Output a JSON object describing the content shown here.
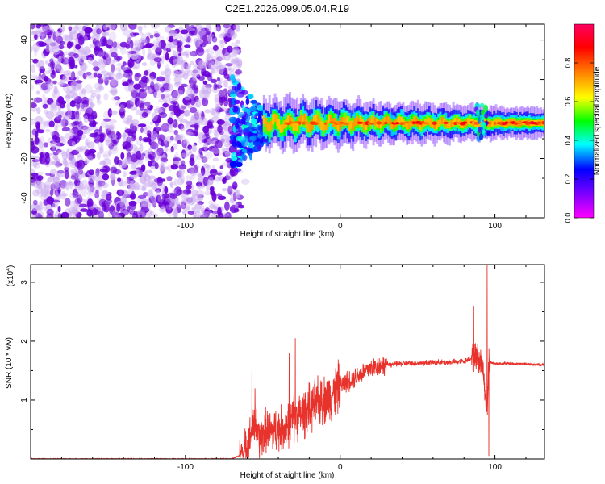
{
  "title": "C2E1.2026.099.05.04.R19",
  "colors": {
    "snr_line": "#e8322c",
    "noise_dark": "#6a00d8",
    "noise_light": "#c9a8f0",
    "axis": "#000000"
  },
  "chart_data": [
    {
      "type": "heatmap",
      "title": "C2E1.2026.099.05.04.R19",
      "xlabel": "Height of straight line (km)",
      "ylabel": "Frequency (Hz)",
      "xlim": [
        -200,
        132
      ],
      "ylim": [
        -50,
        48
      ],
      "xticks": [
        -100,
        0,
        100
      ],
      "xtick_labels": [
        "-100",
        "0",
        "100"
      ],
      "yticks": [
        -40,
        -20,
        0,
        20,
        40
      ],
      "ytick_labels": [
        "-40",
        "-20",
        "0",
        "20",
        "40"
      ],
      "colorbar": {
        "label": "Normalized spectral amplitude",
        "range": [
          0,
          1
        ],
        "ticks": [
          0,
          0.2,
          0.4,
          0.6,
          0.8
        ],
        "tick_labels": [
          "0.0",
          "0.2",
          "0.4",
          "0.6",
          "0.8"
        ],
        "colormap": [
          "#ff00ff",
          "#8000ff",
          "#0000ff",
          "#00ffff",
          "#00ff00",
          "#ffff00",
          "#ff8000",
          "#ff0000",
          "#ff0060"
        ]
      },
      "regions": [
        {
          "name": "noise",
          "x_range": [
            -200,
            -65
          ],
          "freq_range": [
            -50,
            48
          ],
          "amplitude": 0.1
        },
        {
          "name": "transition",
          "x_range": [
            -70,
            -45
          ],
          "freq_range": [
            -20,
            10
          ],
          "amplitude": 0.25
        },
        {
          "name": "signal-band",
          "x_range": [
            -50,
            132
          ],
          "center_freq": -2,
          "half_width": 3,
          "amplitude_peak": 0.95
        },
        {
          "name": "disturbance",
          "x_range": [
            88,
            96
          ],
          "freq_range": [
            -10,
            8
          ],
          "amplitude": 0.5
        }
      ]
    },
    {
      "type": "line",
      "xlabel": "Height of straight line (km)",
      "ylabel": "SNR (10 * v/v)",
      "y_scale_label": "(x10",
      "y_scale_exp": "4",
      "y_scale_close": ")",
      "xlim": [
        -200,
        132
      ],
      "ylim": [
        0,
        3.3
      ],
      "xticks": [
        -100,
        0,
        100
      ],
      "xtick_labels": [
        "-100",
        "0",
        "100"
      ],
      "yticks": [
        1,
        2,
        3
      ],
      "ytick_labels": [
        "1",
        "2",
        "3"
      ],
      "series": [
        {
          "name": "SNR",
          "x": [
            -200,
            -70,
            -62,
            -58,
            -55,
            -52,
            -48,
            -45,
            -40,
            -35,
            -30,
            -25,
            -20,
            -15,
            -10,
            -5,
            0,
            10,
            20,
            30,
            40,
            50,
            60,
            70,
            80,
            88,
            92,
            95,
            96,
            100,
            110,
            120,
            132
          ],
          "y": [
            0.0,
            0.0,
            0.1,
            0.4,
            0.6,
            0.3,
            0.5,
            0.45,
            0.5,
            0.55,
            0.7,
            0.75,
            0.85,
            0.95,
            1.0,
            1.1,
            1.25,
            1.4,
            1.55,
            1.6,
            1.62,
            1.63,
            1.64,
            1.64,
            1.66,
            1.75,
            1.6,
            0.8,
            1.65,
            1.62,
            1.62,
            1.61,
            1.6
          ]
        }
      ],
      "spikes": [
        {
          "x": -57,
          "y": 1.5
        },
        {
          "x": -55,
          "y": 1.2
        },
        {
          "x": -33,
          "y": 1.8
        },
        {
          "x": -29,
          "y": 2.05
        },
        {
          "x": -12,
          "y": 1.3
        },
        {
          "x": 86,
          "y": 2.6
        },
        {
          "x": 95,
          "y": 3.3
        },
        {
          "x": 96,
          "y": 0.05
        }
      ]
    }
  ]
}
